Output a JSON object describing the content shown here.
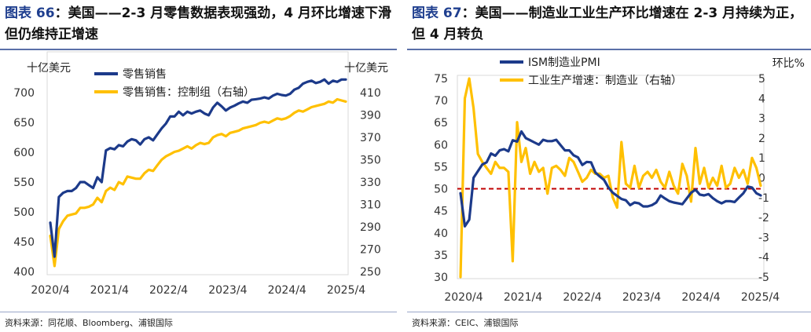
{
  "panels": [
    {
      "figure_label": "图表 66",
      "title_text": "：美国——2-3 月零售数据表现强劲，4 月环比增速下滑但仍维持正增速",
      "source": "资料来源：同花顺、Bloomberg、浦银国际",
      "chart_data": {
        "type": "line",
        "left_unit": "十亿美元",
        "right_unit": "十亿美元",
        "x_ticks": [
          "2020/4",
          "2021/4",
          "2022/4",
          "2023/4",
          "2024/4",
          "2025/4"
        ],
        "left_axis": {
          "min": 400,
          "max": 700,
          "ticks": [
            400,
            450,
            500,
            550,
            600,
            650,
            700
          ]
        },
        "right_axis": {
          "min": 250,
          "max": 410,
          "ticks": [
            250,
            270,
            290,
            310,
            330,
            350,
            370,
            390,
            410
          ]
        },
        "series": [
          {
            "name": "零售销售",
            "axis": "left",
            "color": "#1C3A8A",
            "values": [
              482,
              425,
              525,
              532,
              535,
              535,
              540,
              550,
              550,
              545,
              540,
              558,
              550,
              603,
              607,
              605,
              612,
              610,
              618,
              622,
              620,
              613,
              622,
              625,
              620,
              630,
              640,
              648,
              660,
              660,
              668,
              662,
              668,
              665,
              668,
              670,
              665,
              662,
              675,
              683,
              677,
              670,
              675,
              678,
              682,
              685,
              683,
              688,
              689,
              690,
              692,
              690,
              695,
              698,
              696,
              695,
              698,
              705,
              708,
              715,
              718,
              720,
              716,
              718,
              722,
              715,
              720,
              718,
              722,
              722
            ]
          },
          {
            "name": "零售销售：控制组（右轴）",
            "axis": "right",
            "color": "#FFC000",
            "values": [
              282,
              255,
              288,
              295,
              300,
              301,
              302,
              307,
              307,
              308,
              310,
              316,
              312,
              322,
              325,
              323,
              330,
              328,
              335,
              334,
              333,
              333,
              338,
              341,
              340,
              345,
              350,
              353,
              355,
              357,
              358,
              360,
              362,
              360,
              363,
              365,
              364,
              365,
              370,
              372,
              373,
              371,
              374,
              375,
              376,
              378,
              379,
              380,
              381,
              383,
              384,
              383,
              385,
              387,
              386,
              387,
              389,
              392,
              394,
              393,
              395,
              397,
              398,
              399,
              400,
              402,
              401,
              404,
              403,
              402
            ]
          }
        ]
      }
    },
    {
      "figure_label": "图表 67",
      "title_text": "：美国——制造业工业生产环比增速在 2-3 月持续为正，但 4 月转负",
      "source": "资料来源：CEIC、浦银国际",
      "chart_data": {
        "type": "line",
        "right_unit": "环比%",
        "x_ticks": [
          "2020/4",
          "2021/4",
          "2022/4",
          "2023/4",
          "2024/4",
          "2025/4"
        ],
        "left_axis": {
          "min": 30,
          "max": 75,
          "ticks": [
            30,
            35,
            40,
            45,
            50,
            55,
            60,
            65,
            70,
            75
          ]
        },
        "right_axis": {
          "min": -5,
          "max": 5,
          "ticks": [
            -5,
            -4,
            -3,
            -2,
            -1,
            0,
            1,
            2,
            3,
            4,
            5
          ]
        },
        "reference_line": {
          "axis": "left",
          "value": 50,
          "color": "#C00000"
        },
        "series": [
          {
            "name": "ISM制造业PMI",
            "axis": "left",
            "color": "#1C3A8A",
            "values": [
              49.0,
              41.5,
              43.0,
              52.5,
              54.0,
              55.5,
              56.0,
              58.0,
              57.5,
              58.7,
              59.0,
              58.5,
              61.0,
              60.7,
              63.0,
              61.5,
              61.0,
              60.5,
              60.0,
              61.1,
              60.8,
              60.8,
              61.1,
              59.9,
              58.7,
              58.7,
              57.6,
              57.1,
              55.4,
              56.1,
              56.0,
              53.7,
              52.8,
              52.0,
              50.3,
              49.1,
              48.4,
              47.7,
              47.4,
              46.3,
              46.9,
              46.7,
              46.0,
              46.0,
              46.3,
              46.9,
              48.5,
              47.8,
              47.2,
              46.9,
              46.7,
              46.5,
              47.8,
              49.1,
              49.8,
              48.7,
              48.5,
              48.8,
              47.9,
              47.2,
              46.7,
              47.2,
              47.2,
              47.0,
              48.0,
              49.0,
              50.5,
              50.3,
              49.0,
              48.5
            ]
          },
          {
            "name": "工业生产增速：制造业（右轴）",
            "axis": "right",
            "color": "#FFC000",
            "values": [
              -5.0,
              4.0,
              5.0,
              3.5,
              1.2,
              0.8,
              0.5,
              0.2,
              0.8,
              0.5,
              0.5,
              0.3,
              -4.2,
              2.8,
              0.8,
              1.5,
              0.2,
              0.8,
              0.3,
              0.5,
              -0.8,
              0.5,
              0.6,
              0.4,
              0.1,
              1.0,
              0.8,
              0.3,
              -0.2,
              0.0,
              0.4,
              0.2,
              0.2,
              0.0,
              0.1,
              -1.0,
              -1.5,
              1.8,
              -0.3,
              -0.5,
              0.6,
              -0.5,
              0.1,
              0.3,
              0.0,
              0.4,
              -0.2,
              -0.5,
              0.3,
              -0.4,
              -0.8,
              0.7,
              0.1,
              -1.2,
              1.5,
              -0.3,
              0.5,
              -0.5,
              0.0,
              -0.4,
              0.6,
              -0.5,
              -0.3,
              0.5,
              0.0,
              0.4,
              -0.3,
              1.0,
              0.5,
              -0.4
            ]
          }
        ]
      }
    }
  ]
}
